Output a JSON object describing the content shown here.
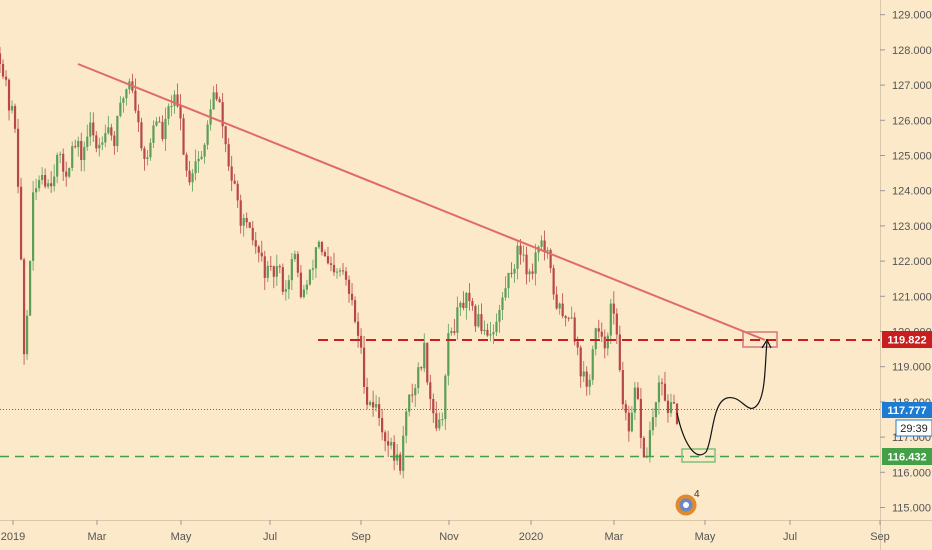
{
  "chart_data": {
    "type": "line",
    "ylim": [
      114.6,
      129.6
    ],
    "y_ticks": [
      "115.000",
      "116.000",
      "117.000",
      "118.000",
      "119.000",
      "120.000",
      "121.000",
      "122.000",
      "123.000",
      "124.000",
      "125.000",
      "126.000",
      "127.000",
      "128.000",
      "129.000"
    ],
    "x_ticks": [
      "2019",
      "Mar",
      "May",
      "Jul",
      "Sep",
      "Nov",
      "2020",
      "Mar",
      "May",
      "Jul",
      "Sep"
    ],
    "series": [
      {
        "values": [
          127.9,
          126.5,
          125.8,
          119.0,
          123.6,
          124.6,
          124.2,
          124.9,
          124.5,
          125.3,
          125.0,
          125.8,
          125.2,
          126.0,
          125.4,
          126.6,
          127.3,
          125.8,
          124.7,
          126.2,
          125.5,
          126.6,
          126.2,
          124.3,
          124.9,
          125.0,
          126.8,
          126.3,
          124.8,
          123.7,
          122.9,
          122.6,
          122.0,
          121.5,
          121.8,
          121.2,
          122.2,
          121.0,
          121.5,
          122.7,
          121.9,
          121.5,
          121.7,
          120.9,
          119.8,
          118.1,
          117.9,
          117.2,
          116.6,
          116.2,
          117.9,
          118.6,
          119.5,
          117.8,
          117.2,
          119.8,
          120.4,
          120.9,
          120.4,
          120.2,
          120.0,
          120.3,
          121.3,
          122.0,
          122.4,
          121.5,
          122.6,
          122.2,
          121.0,
          120.3,
          120.7,
          119.1,
          118.3,
          120.0,
          119.5,
          120.8,
          119.0,
          116.8,
          118.4,
          116.2,
          117.5,
          118.5,
          117.8,
          117.6
        ]
      }
    ],
    "last_price": "117.777",
    "countdown": "29:39",
    "resistance_level": "119.822",
    "support_level": "116.432",
    "projection": "down to support then up to trendline"
  },
  "price_labels": {
    "resistance": "119.822",
    "current": "117.777",
    "countdown": "29:39",
    "support": "116.432"
  },
  "colors": {
    "background": "#fbe9c9",
    "trendline": "#e06a6a",
    "resistance": "#c81e1e",
    "support": "#43a047",
    "current": "#1e7bd2",
    "up_candle": "#5c9e57",
    "down_candle": "#b84848"
  },
  "badge": {
    "count": "4"
  }
}
